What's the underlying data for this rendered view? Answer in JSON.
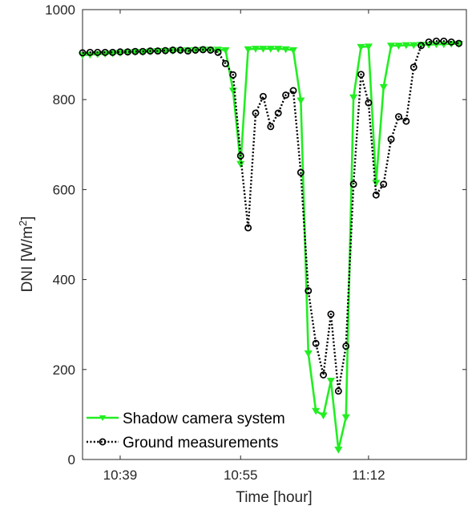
{
  "chart_data": {
    "type": "line",
    "title": "",
    "xlabel": "Time [hour]",
    "ylabel_main": "DNI [W/m",
    "ylabel_sup": "2",
    "ylabel_close": "]",
    "xlim": [
      0,
      51
    ],
    "ylim": [
      0,
      1000
    ],
    "xticks": [
      {
        "value": 5,
        "label": "10:39"
      },
      {
        "value": 21,
        "label": "10:55"
      },
      {
        "value": 38,
        "label": "11:12"
      }
    ],
    "yticks": [
      {
        "value": 0,
        "label": "0"
      },
      {
        "value": 200,
        "label": "200"
      },
      {
        "value": 400,
        "label": "400"
      },
      {
        "value": 600,
        "label": "600"
      },
      {
        "value": 800,
        "label": "800"
      },
      {
        "value": 1000,
        "label": "1000"
      }
    ],
    "grid": false,
    "legend_position": "bottom-left",
    "series": [
      {
        "name": "Shadow camera system",
        "color": "#22ee22",
        "style": "solid",
        "marker": "triangle-down",
        "x": [
          0,
          1,
          2,
          3,
          4,
          5,
          6,
          7,
          8,
          9,
          10,
          11,
          12,
          13,
          14,
          15,
          16,
          17,
          18,
          19,
          20,
          21,
          22,
          23,
          24,
          25,
          26,
          27,
          28,
          29,
          30,
          31,
          32,
          33,
          34,
          35,
          36,
          37,
          38,
          39,
          40,
          41,
          42,
          43,
          44,
          45,
          46,
          47,
          48,
          49,
          50
        ],
        "y": [
          899,
          900,
          901,
          902,
          903,
          904,
          905,
          906,
          906,
          907,
          908,
          908,
          909,
          909,
          910,
          910,
          911,
          911,
          911,
          910,
          820,
          657,
          912,
          913,
          913,
          913,
          913,
          912,
          910,
          798,
          236,
          108,
          98,
          175,
          22,
          94,
          805,
          917,
          918,
          615,
          828,
          920,
          920,
          921,
          921,
          922,
          922,
          923,
          923,
          924,
          924
        ]
      },
      {
        "name": "Ground measurements",
        "color": "#000000",
        "style": "dotted",
        "marker": "circle",
        "x": [
          0,
          1,
          2,
          3,
          4,
          5,
          6,
          7,
          8,
          9,
          10,
          11,
          12,
          13,
          14,
          15,
          16,
          17,
          18,
          19,
          20,
          21,
          22,
          23,
          24,
          25,
          26,
          27,
          28,
          29,
          30,
          31,
          32,
          33,
          34,
          35,
          36,
          37,
          38,
          39,
          40,
          41,
          42,
          43,
          44,
          45,
          46,
          47,
          48,
          49,
          50
        ],
        "y": [
          904,
          905,
          905,
          905,
          905,
          906,
          906,
          907,
          907,
          908,
          908,
          909,
          910,
          910,
          908,
          910,
          911,
          910,
          905,
          880,
          855,
          675,
          515,
          770,
          807,
          740,
          770,
          810,
          820,
          638,
          375,
          258,
          188,
          323,
          152,
          252,
          612,
          856,
          793,
          588,
          612,
          712,
          762,
          752,
          872,
          920,
          928,
          930,
          930,
          928,
          925
        ]
      }
    ]
  }
}
